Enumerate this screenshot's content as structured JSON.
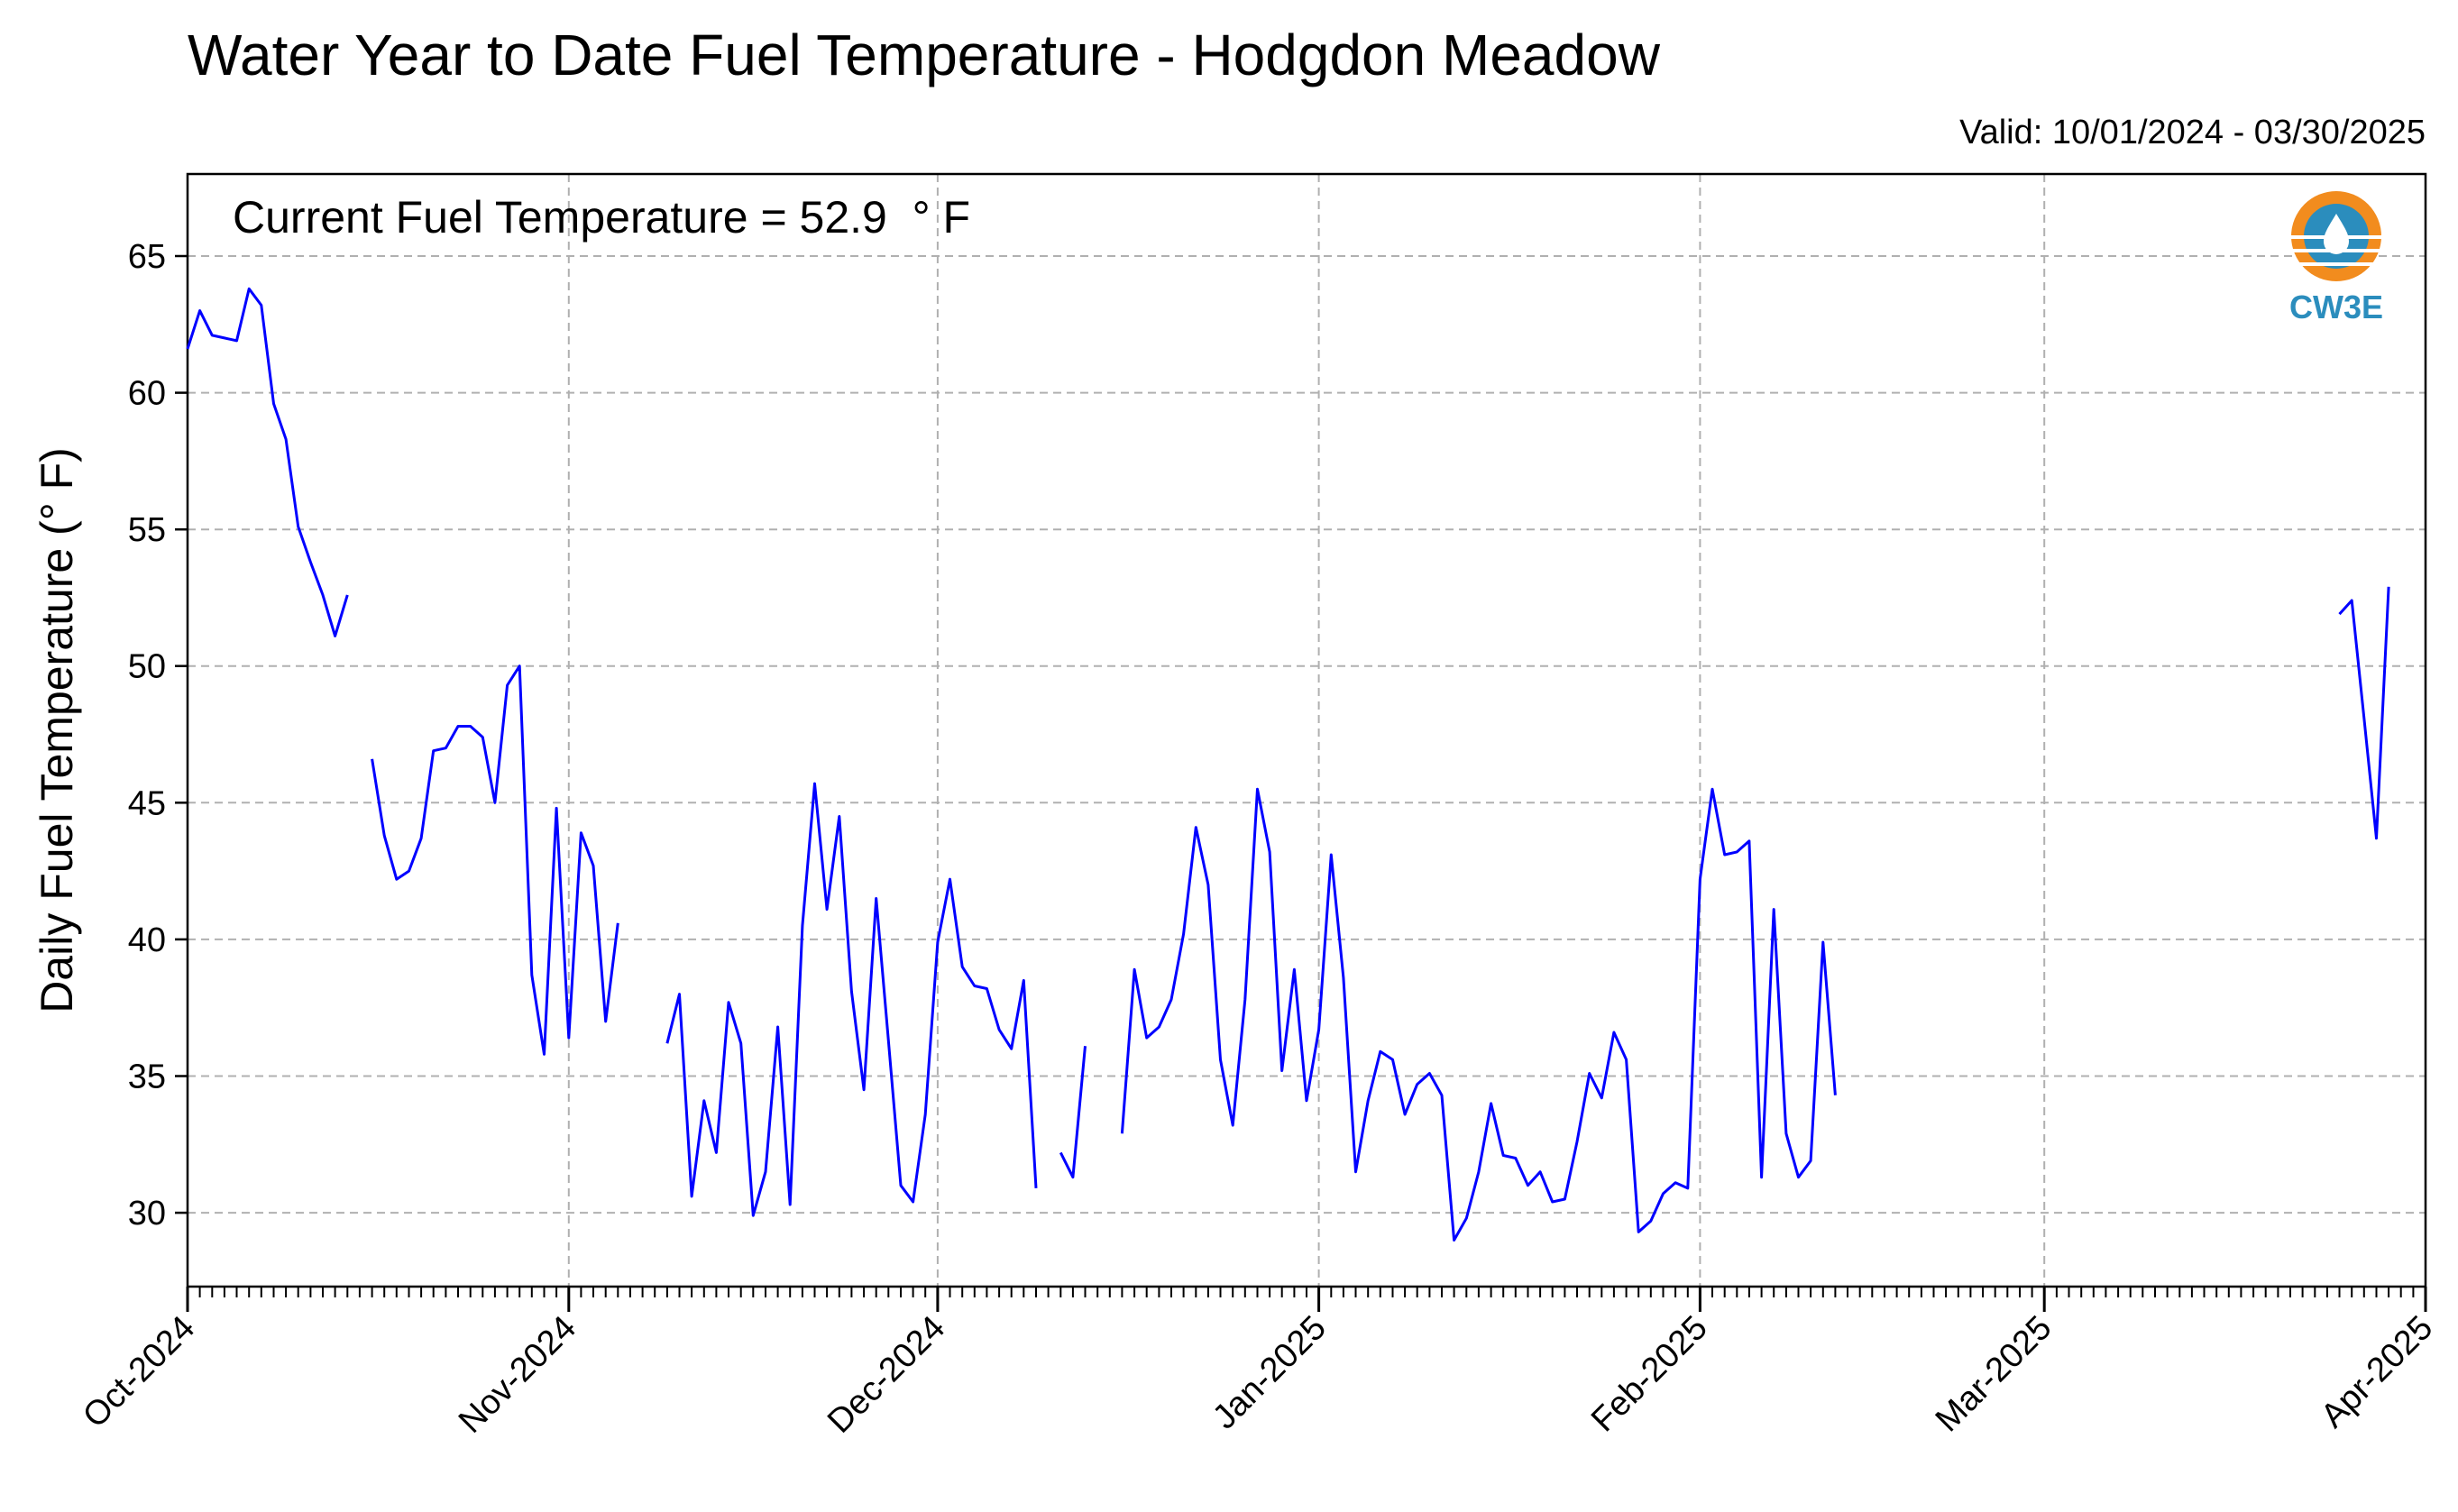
{
  "chart_data": {
    "type": "line",
    "title": "Water Year to Date Fuel Temperature - Hodgdon Meadow",
    "subtitle": "Valid: 10/01/2024 - 03/30/2025",
    "annotation": "Current Fuel Temperature = 52.9  ° F",
    "ylabel": "Daily Fuel Temperature (° F)",
    "xlabel": "",
    "xlim": [
      "2024-10-01",
      "2025-04-01"
    ],
    "ylim": [
      27.3,
      68
    ],
    "yticks": [
      30,
      35,
      40,
      45,
      50,
      55,
      60,
      65
    ],
    "xticks": [
      {
        "date": "2024-10-01",
        "label": "Oct-2024"
      },
      {
        "date": "2024-11-01",
        "label": "Nov-2024"
      },
      {
        "date": "2024-12-01",
        "label": "Dec-2024"
      },
      {
        "date": "2025-01-01",
        "label": "Jan-2025"
      },
      {
        "date": "2025-02-01",
        "label": "Feb-2025"
      },
      {
        "date": "2025-03-01",
        "label": "Mar-2025"
      },
      {
        "date": "2025-04-01",
        "label": "Apr-2025"
      }
    ],
    "grid": true,
    "line_color": "#0000ff",
    "series": [
      {
        "color": "#0000ff",
        "points": [
          [
            "2024-10-01",
            61.6
          ],
          [
            "2024-10-02",
            63.0
          ],
          [
            "2024-10-03",
            62.1
          ],
          [
            "2024-10-04",
            62.0
          ],
          [
            "2024-10-05",
            61.9
          ],
          [
            "2024-10-06",
            63.8
          ],
          [
            "2024-10-07",
            63.2
          ],
          [
            "2024-10-08",
            59.6
          ],
          [
            "2024-10-09",
            58.3
          ],
          [
            "2024-10-10",
            55.1
          ],
          [
            "2024-10-11",
            53.8
          ],
          [
            "2024-10-12",
            52.6
          ],
          [
            "2024-10-13",
            51.1
          ],
          [
            "2024-10-14",
            52.6
          ],
          null,
          [
            "2024-10-16",
            46.6
          ],
          [
            "2024-10-17",
            43.8
          ],
          [
            "2024-10-18",
            42.2
          ],
          [
            "2024-10-19",
            42.5
          ],
          [
            "2024-10-20",
            43.7
          ],
          [
            "2024-10-21",
            46.9
          ],
          [
            "2024-10-22",
            47.0
          ],
          [
            "2024-10-23",
            47.8
          ],
          [
            "2024-10-24",
            47.8
          ],
          [
            "2024-10-25",
            47.4
          ],
          [
            "2024-10-26",
            45.0
          ],
          [
            "2024-10-27",
            49.3
          ],
          [
            "2024-10-28",
            50.0
          ],
          [
            "2024-10-29",
            38.7
          ],
          [
            "2024-10-30",
            35.8
          ],
          [
            "2024-10-31",
            44.8
          ],
          [
            "2024-11-01",
            36.4
          ],
          [
            "2024-11-02",
            43.9
          ],
          [
            "2024-11-03",
            42.7
          ],
          [
            "2024-11-04",
            37.0
          ],
          [
            "2024-11-05",
            40.6
          ],
          null,
          [
            "2024-11-09",
            36.2
          ],
          [
            "2024-11-10",
            38.0
          ],
          [
            "2024-11-11",
            30.6
          ],
          [
            "2024-11-12",
            34.1
          ],
          [
            "2024-11-13",
            32.2
          ],
          [
            "2024-11-14",
            37.7
          ],
          [
            "2024-11-15",
            36.2
          ],
          [
            "2024-11-16",
            29.9
          ],
          [
            "2024-11-17",
            31.5
          ],
          [
            "2024-11-18",
            36.8
          ],
          [
            "2024-11-19",
            30.3
          ],
          [
            "2024-11-20",
            40.5
          ],
          [
            "2024-11-21",
            45.7
          ],
          [
            "2024-11-22",
            41.1
          ],
          [
            "2024-11-23",
            44.5
          ],
          [
            "2024-11-24",
            38.1
          ],
          [
            "2024-11-25",
            34.5
          ],
          [
            "2024-11-26",
            41.5
          ],
          [
            "2024-11-27",
            36.3
          ],
          [
            "2024-11-28",
            31.0
          ],
          [
            "2024-11-29",
            30.4
          ],
          [
            "2024-11-30",
            33.6
          ],
          [
            "2024-12-01",
            39.9
          ],
          [
            "2024-12-02",
            42.2
          ],
          [
            "2024-12-03",
            39.0
          ],
          [
            "2024-12-04",
            38.3
          ],
          [
            "2024-12-05",
            38.2
          ],
          [
            "2024-12-06",
            36.7
          ],
          [
            "2024-12-07",
            36.0
          ],
          [
            "2024-12-08",
            38.5
          ],
          [
            "2024-12-09",
            30.9
          ],
          null,
          [
            "2024-12-11",
            32.2
          ],
          [
            "2024-12-12",
            31.3
          ],
          [
            "2024-12-13",
            36.1
          ],
          null,
          [
            "2024-12-16",
            32.9
          ],
          [
            "2024-12-17",
            38.9
          ],
          [
            "2024-12-18",
            36.4
          ],
          [
            "2024-12-19",
            36.8
          ],
          [
            "2024-12-20",
            37.8
          ],
          [
            "2024-12-21",
            40.2
          ],
          [
            "2024-12-22",
            44.1
          ],
          [
            "2024-12-23",
            42.0
          ],
          [
            "2024-12-24",
            35.6
          ],
          [
            "2024-12-25",
            33.2
          ],
          [
            "2024-12-26",
            37.8
          ],
          [
            "2024-12-27",
            45.5
          ],
          [
            "2024-12-28",
            43.2
          ],
          [
            "2024-12-29",
            35.2
          ],
          [
            "2024-12-30",
            38.9
          ],
          [
            "2024-12-31",
            34.1
          ],
          [
            "2025-01-01",
            36.7
          ],
          [
            "2025-01-02",
            43.1
          ],
          [
            "2025-01-03",
            38.6
          ],
          [
            "2025-01-04",
            31.5
          ],
          [
            "2025-01-05",
            34.1
          ],
          [
            "2025-01-06",
            35.9
          ],
          [
            "2025-01-07",
            35.6
          ],
          [
            "2025-01-08",
            33.6
          ],
          [
            "2025-01-09",
            34.7
          ],
          [
            "2025-01-10",
            35.1
          ],
          [
            "2025-01-11",
            34.3
          ],
          [
            "2025-01-12",
            29.0
          ],
          [
            "2025-01-13",
            29.8
          ],
          [
            "2025-01-14",
            31.5
          ],
          [
            "2025-01-15",
            34.0
          ],
          [
            "2025-01-16",
            32.1
          ],
          [
            "2025-01-17",
            32.0
          ],
          [
            "2025-01-18",
            31.0
          ],
          [
            "2025-01-19",
            31.5
          ],
          [
            "2025-01-20",
            30.4
          ],
          [
            "2025-01-21",
            30.5
          ],
          [
            "2025-01-22",
            32.6
          ],
          [
            "2025-01-23",
            35.1
          ],
          [
            "2025-01-24",
            34.2
          ],
          [
            "2025-01-25",
            36.6
          ],
          [
            "2025-01-26",
            35.6
          ],
          [
            "2025-01-27",
            29.3
          ],
          [
            "2025-01-28",
            29.7
          ],
          [
            "2025-01-29",
            30.7
          ],
          [
            "2025-01-30",
            31.1
          ],
          [
            "2025-01-31",
            30.9
          ],
          [
            "2025-02-01",
            42.2
          ],
          [
            "2025-02-02",
            45.5
          ],
          [
            "2025-02-03",
            43.1
          ],
          [
            "2025-02-04",
            43.2
          ],
          [
            "2025-02-05",
            43.6
          ],
          [
            "2025-02-06",
            31.3
          ],
          [
            "2025-02-07",
            41.1
          ],
          [
            "2025-02-08",
            32.9
          ],
          [
            "2025-02-09",
            31.3
          ],
          [
            "2025-02-10",
            31.9
          ],
          [
            "2025-02-11",
            39.9
          ],
          [
            "2025-02-12",
            34.3
          ],
          null,
          [
            "2025-03-25",
            51.9
          ],
          [
            "2025-03-26",
            52.4
          ],
          [
            "2025-03-27",
            48.1
          ],
          [
            "2025-03-28",
            43.7
          ],
          [
            "2025-03-29",
            52.9
          ]
        ]
      }
    ]
  },
  "logo": {
    "text": "CW3E",
    "ring_color": "#f28c1e",
    "water_color": "#2b8dbd",
    "text_color": "#2b8dbd",
    "icon": "water-drop-icon"
  }
}
